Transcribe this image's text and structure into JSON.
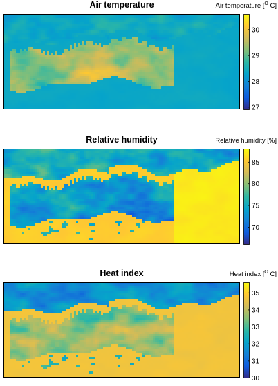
{
  "chart_data": [
    {
      "type": "heatmap",
      "title": "Air temperature",
      "colorbar_label": {
        "main": "Air temperature [",
        "sup": "O",
        "tail": " C]"
      },
      "colorbar_ticks": [
        27,
        28,
        29,
        30
      ],
      "range": [
        26.9,
        30.6
      ],
      "colormap": "parula",
      "sea_value": 28.35
    },
    {
      "type": "heatmap",
      "title": "Relative humidity",
      "colorbar_label": {
        "main": "Relative humidity [%]",
        "sup": "",
        "tail": ""
      },
      "colorbar_ticks": [
        70,
        75,
        80,
        85
      ],
      "range": [
        66,
        88
      ],
      "colormap": "parula",
      "sea_value": 85.5
    },
    {
      "type": "heatmap",
      "title": "Heat index",
      "colorbar_label": {
        "main": "Heat index [",
        "sup": "O",
        "tail": " C]"
      },
      "colorbar_ticks": [
        30,
        31,
        32,
        33,
        34,
        35
      ],
      "range": [
        30,
        35.6
      ],
      "colormap": "parula",
      "sea_value": 34.7
    }
  ],
  "colors": {
    "parula": [
      "#352a87",
      "#0f5cdd",
      "#1481d6",
      "#06a4ca",
      "#2eb7a4",
      "#87bf77",
      "#d1bb59",
      "#fec832",
      "#f9fb0e"
    ]
  }
}
